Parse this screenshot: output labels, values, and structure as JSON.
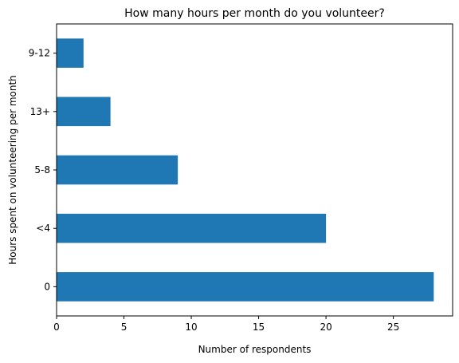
{
  "chart_data": {
    "type": "bar",
    "orientation": "horizontal",
    "title": "How many hours per month do you volunteer?",
    "xlabel": "Number of respondents",
    "ylabel": "Hours spent on volunteering per month",
    "categories": [
      "0",
      "<4",
      "5-8",
      "13+",
      "9-12"
    ],
    "values": [
      28,
      20,
      9,
      4,
      2
    ],
    "xlim": [
      0,
      29.4
    ],
    "xticks": [
      0,
      5,
      10,
      15,
      20,
      25
    ],
    "xtick_labels": [
      "0",
      "5",
      "10",
      "15",
      "20",
      "25"
    ],
    "bar_color": "#1f77b4",
    "grid": false,
    "legend": "none"
  }
}
